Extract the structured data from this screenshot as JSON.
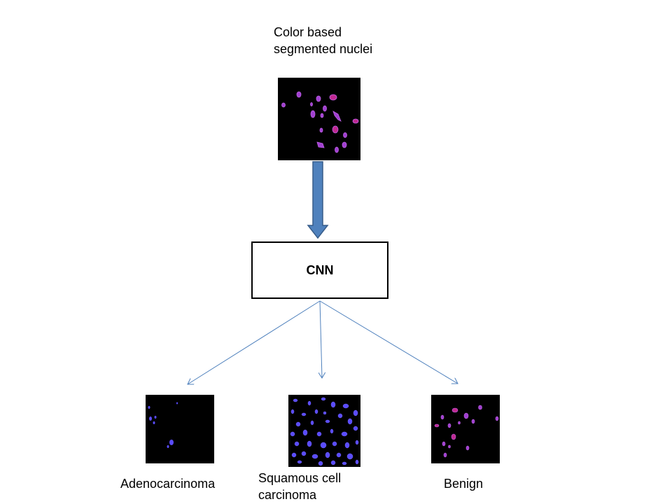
{
  "input": {
    "label_line1": "Color based",
    "label_line2": "segmented nuclei"
  },
  "model": {
    "label": "CNN"
  },
  "outputs": [
    {
      "label": "Adenocarcinoma"
    },
    {
      "label_line1": "Squamous cell",
      "label_line2": "carcinoma"
    },
    {
      "label": "Benign"
    }
  ],
  "colors": {
    "image_background": "#000000",
    "nucleus_magenta": "#b040c8",
    "nucleus_pink": "#e0208a",
    "nucleus_blue": "#5a4cff",
    "block_arrow_fill": "#4f81bd",
    "block_arrow_stroke": "#385d8a",
    "connector_line": "#4f81bd"
  }
}
